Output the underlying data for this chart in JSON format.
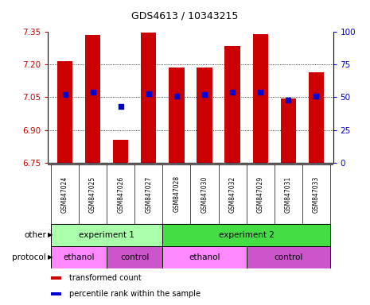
{
  "title": "GDS4613 / 10343215",
  "samples": [
    "GSM847024",
    "GSM847025",
    "GSM847026",
    "GSM847027",
    "GSM847028",
    "GSM847030",
    "GSM847032",
    "GSM847029",
    "GSM847031",
    "GSM847033"
  ],
  "bar_values": [
    7.215,
    7.335,
    6.855,
    7.345,
    7.185,
    7.185,
    7.285,
    7.34,
    7.045,
    7.165
  ],
  "percentile_values": [
    52,
    54,
    43,
    53,
    51,
    52,
    54,
    54,
    48,
    51
  ],
  "ylim_left": [
    6.75,
    7.35
  ],
  "ylim_right": [
    0,
    100
  ],
  "yticks_left": [
    6.75,
    6.9,
    7.05,
    7.2,
    7.35
  ],
  "yticks_right": [
    0,
    25,
    50,
    75,
    100
  ],
  "bar_color": "#cc0000",
  "dot_color": "#0000cc",
  "bar_bottom": 6.75,
  "hline_values": [
    6.9,
    7.05,
    7.2
  ],
  "experiment_groups": [
    {
      "label": "experiment 1",
      "start": 0,
      "end": 4,
      "color": "#aaffaa"
    },
    {
      "label": "experiment 2",
      "start": 4,
      "end": 10,
      "color": "#44dd44"
    }
  ],
  "protocol_groups": [
    {
      "label": "ethanol",
      "start": 0,
      "end": 2,
      "color": "#ff88ff"
    },
    {
      "label": "control",
      "start": 2,
      "end": 4,
      "color": "#cc55cc"
    },
    {
      "label": "ethanol",
      "start": 4,
      "end": 7,
      "color": "#ff88ff"
    },
    {
      "label": "control",
      "start": 7,
      "end": 10,
      "color": "#cc55cc"
    }
  ],
  "legend_items": [
    {
      "label": "transformed count",
      "color": "#cc0000"
    },
    {
      "label": "percentile rank within the sample",
      "color": "#0000cc"
    }
  ],
  "other_label": "other",
  "protocol_label": "protocol",
  "tick_label_color_left": "#cc0000",
  "tick_label_color_right": "#0000cc",
  "sample_bg_color": "#cccccc",
  "plot_bg_color": "#ffffff"
}
